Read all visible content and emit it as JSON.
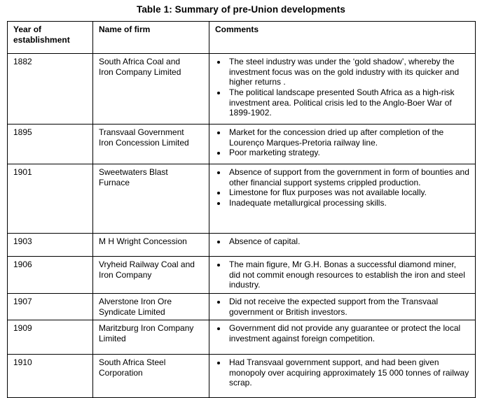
{
  "title": "Table 1: Summary of pre-Union developments",
  "colors": {
    "background": "#ffffff",
    "text": "#000000",
    "border": "#000000"
  },
  "table": {
    "headers": [
      "Year of establishment",
      "Name of firm",
      "Comments"
    ],
    "rows": [
      {
        "year": "1882",
        "firm": "South Africa Coal and Iron Company Limited",
        "comments": [
          "The steel industry was under the ‘gold shadow’, whereby the investment focus was on the gold industry with its quicker and higher returns .",
          "The political landscape presented South Africa as a high-risk investment area. Political crisis led to the Anglo-Boer War of 1899-1902."
        ]
      },
      {
        "year": "1895",
        "firm": "Transvaal Government Iron Concession Limited",
        "comments": [
          "Market for the concession dried up after completion of the Lourenço Marques-Pretoria railway line.",
          "Poor marketing strategy."
        ]
      },
      {
        "year": "1901",
        "firm": "Sweetwaters Blast Furnace",
        "comments": [
          "Absence of support from the government in form of bounties and other financial support systems crippled production.",
          "Limestone for flux purposes was not available locally.",
          "Inadequate metallurgical processing skills."
        ]
      },
      {
        "year": "1903",
        "firm": "M H Wright Concession",
        "comments": [
          "Absence of capital."
        ]
      },
      {
        "year": "1906",
        "firm": "Vryheid Railway Coal and Iron Company",
        "comments": [
          "The main figure, Mr G.H. Bonas a successful diamond miner, did not commit enough resources to establish the iron and steel industry."
        ]
      },
      {
        "year": "1907",
        "firm": "Alverstone Iron Ore Syndicate Limited",
        "comments": [
          "Did not receive the expected support from the Transvaal government or British investors."
        ]
      },
      {
        "year": "1909",
        "firm": "Maritzburg Iron Company Limited",
        "comments": [
          "Government did not provide any guarantee or protect the local investment against foreign competition."
        ]
      },
      {
        "year": "1910",
        "firm": "South Africa Steel Corporation",
        "comments": [
          "Had Transvaal government support, and had been given monopoly over acquiring approximately 15 000 tonnes of railway scrap."
        ]
      }
    ]
  }
}
